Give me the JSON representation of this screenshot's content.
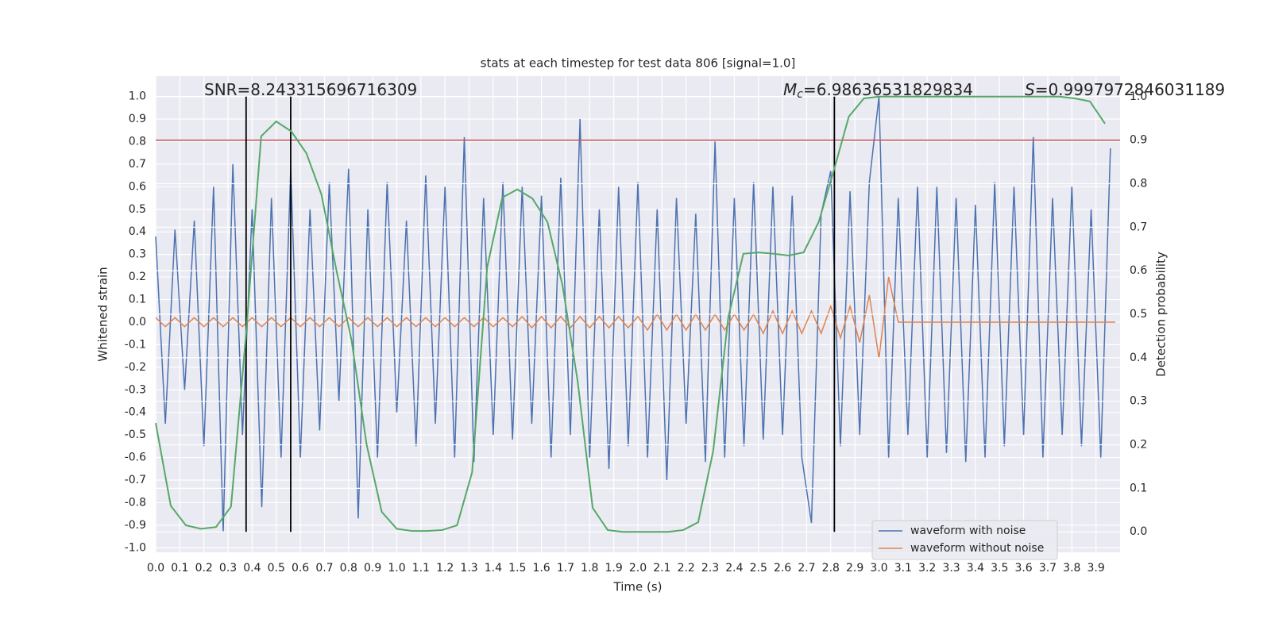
{
  "chart_data": {
    "type": "line",
    "title": "stats at each timestep for test data 806 [signal=1.0]",
    "xlabel": "Time (s)",
    "ylabel": "Whitened strain",
    "y2label": "Detection probability",
    "xlim": [
      0,
      4
    ],
    "ylim": [
      -1.02,
      1.09
    ],
    "y2lim": [
      -0.047,
      1.047
    ],
    "xticks": [
      {
        "value": 0,
        "label": "0.0"
      },
      0.1,
      0.2,
      0.3,
      0.4,
      0.5,
      0.6,
      0.7,
      0.8,
      0.9,
      {
        "value": 1,
        "label": "1.0"
      },
      1.1,
      1.2,
      1.3,
      1.4,
      1.5,
      1.6,
      1.7,
      1.8,
      1.9,
      {
        "value": 2,
        "label": "2.0"
      },
      2.1,
      2.2,
      2.3,
      2.4,
      2.5,
      2.6,
      2.7,
      2.8,
      2.9,
      {
        "value": 3,
        "label": "3.0"
      },
      3.1,
      3.2,
      3.3,
      3.4,
      3.5,
      3.6,
      3.7,
      3.8,
      3.9
    ],
    "yticks": [
      {
        "value": -1,
        "label": "-1.0"
      },
      -0.9,
      -0.8,
      -0.7,
      -0.6,
      -0.5,
      -0.4,
      -0.3,
      -0.2,
      -0.1,
      {
        "value": 0,
        "label": "0.0"
      },
      0.1,
      0.2,
      0.3,
      0.4,
      0.5,
      0.6,
      0.7,
      0.8,
      0.9,
      {
        "value": 1,
        "label": "1.0"
      }
    ],
    "y2ticks": [
      {
        "value": 0,
        "label": "0.0"
      },
      0.1,
      0.2,
      0.3,
      0.4,
      0.5,
      0.6,
      0.7,
      0.8,
      0.9,
      {
        "value": 1,
        "label": "1.0"
      }
    ],
    "grid": true,
    "legend": "lower right",
    "annotations": [
      {
        "text": "SNR=8.243315696716309"
      },
      {
        "symbol": "M",
        "subscript": "c",
        "text": "=6.98636531829834"
      },
      {
        "symbol": "S",
        "text": "=0.9997972846031189"
      }
    ],
    "vlines": {
      "color": "#000000",
      "x": [
        0.375,
        0.56,
        2.815
      ]
    },
    "hline": {
      "color": "#c44e52",
      "axis": "y2",
      "value": 0.9
    },
    "series": [
      {
        "name": "waveform with noise",
        "color": "#4c72b0",
        "x": [
          0,
          0.04,
          0.08,
          0.12,
          0.16,
          0.2,
          0.24,
          0.28,
          0.32,
          0.36,
          0.4,
          0.44,
          0.48,
          0.52,
          0.56,
          0.6,
          0.64,
          0.68,
          0.72,
          0.76,
          0.8,
          0.84,
          0.88,
          0.92,
          0.96,
          1,
          1.04,
          1.08,
          1.12,
          1.16,
          1.2,
          1.24,
          1.28,
          1.32,
          1.36,
          1.4,
          1.44,
          1.48,
          1.52,
          1.56,
          1.6,
          1.64,
          1.68,
          1.72,
          1.76,
          1.8,
          1.84,
          1.88,
          1.92,
          1.96,
          2,
          2.04,
          2.08,
          2.12,
          2.16,
          2.2,
          2.24,
          2.28,
          2.32,
          2.36,
          2.4,
          2.44,
          2.48,
          2.52,
          2.56,
          2.6,
          2.64,
          2.68,
          2.72,
          2.76,
          2.8,
          2.84,
          2.88,
          2.92,
          2.96,
          3,
          3.04,
          3.08,
          3.12,
          3.16,
          3.2,
          3.24,
          3.28,
          3.32,
          3.36,
          3.4,
          3.44,
          3.48,
          3.52,
          3.56,
          3.6,
          3.64,
          3.68,
          3.72,
          3.76,
          3.8,
          3.84,
          3.88,
          3.92,
          3.96
        ],
        "values": [
          0.38,
          -0.45,
          0.41,
          -0.3,
          0.45,
          -0.55,
          0.6,
          -0.93,
          0.7,
          -0.5,
          0.5,
          -0.82,
          0.55,
          -0.6,
          0.68,
          -0.6,
          0.5,
          -0.48,
          0.62,
          -0.35,
          0.68,
          -0.87,
          0.5,
          -0.6,
          0.62,
          -0.4,
          0.45,
          -0.55,
          0.65,
          -0.45,
          0.6,
          -0.6,
          0.82,
          -0.62,
          0.55,
          -0.5,
          0.62,
          -0.52,
          0.6,
          -0.45,
          0.56,
          -0.6,
          0.64,
          -0.5,
          0.9,
          -0.6,
          0.5,
          -0.65,
          0.6,
          -0.55,
          0.62,
          -0.6,
          0.5,
          -0.7,
          0.55,
          -0.45,
          0.48,
          -0.62,
          0.8,
          -0.6,
          0.55,
          -0.55,
          0.62,
          -0.52,
          0.6,
          -0.5,
          0.56,
          -0.6,
          -0.89,
          0.48,
          0.67,
          -0.55,
          0.58,
          -0.5,
          0.62,
          1.0,
          -0.6,
          0.55,
          -0.5,
          0.6,
          -0.6,
          0.6,
          -0.58,
          0.55,
          -0.62,
          0.52,
          -0.6,
          0.62,
          -0.55,
          0.6,
          -0.5,
          0.82,
          -0.6,
          0.55,
          -0.5,
          0.6,
          -0.55,
          0.5,
          -0.6,
          0.77
        ]
      },
      {
        "name": "waveform without noise",
        "color": "#dd8452",
        "x": [
          0,
          0.04,
          0.08,
          0.12,
          0.16,
          0.2,
          0.24,
          0.28,
          0.32,
          0.36,
          0.4,
          0.44,
          0.48,
          0.52,
          0.56,
          0.6,
          0.64,
          0.68,
          0.72,
          0.76,
          0.8,
          0.84,
          0.88,
          0.92,
          0.96,
          1,
          1.04,
          1.08,
          1.12,
          1.16,
          1.2,
          1.24,
          1.28,
          1.32,
          1.36,
          1.4,
          1.44,
          1.48,
          1.52,
          1.56,
          1.6,
          1.64,
          1.68,
          1.72,
          1.76,
          1.8,
          1.84,
          1.88,
          1.92,
          1.96,
          2,
          2.04,
          2.08,
          2.12,
          2.16,
          2.2,
          2.24,
          2.28,
          2.32,
          2.36,
          2.4,
          2.44,
          2.48,
          2.52,
          2.56,
          2.6,
          2.64,
          2.68,
          2.72,
          2.76,
          2.8,
          2.84,
          2.88,
          2.92,
          2.96,
          3,
          3.04,
          3.08,
          3.98
        ],
        "values": [
          0.02,
          -0.02,
          0.02,
          -0.02,
          0.02,
          -0.02,
          0.02,
          -0.02,
          0.02,
          -0.02,
          0.02,
          -0.02,
          0.02,
          -0.02,
          0.02,
          -0.02,
          0.02,
          -0.02,
          0.02,
          -0.02,
          0.02,
          -0.02,
          0.02,
          -0.02,
          0.02,
          -0.02,
          0.02,
          -0.02,
          0.02,
          -0.02,
          0.02,
          -0.02,
          0.02,
          -0.02,
          0.02,
          -0.02,
          0.02,
          -0.02,
          0.025,
          -0.025,
          0.025,
          -0.025,
          0.025,
          -0.025,
          0.025,
          -0.025,
          0.025,
          -0.025,
          0.025,
          -0.025,
          0.025,
          -0.035,
          0.035,
          -0.035,
          0.035,
          -0.035,
          0.035,
          -0.035,
          0.035,
          -0.035,
          0.035,
          -0.035,
          0.035,
          -0.05,
          0.05,
          -0.05,
          0.05,
          -0.05,
          0.05,
          -0.05,
          0.07,
          -0.07,
          0.07,
          -0.09,
          0.12,
          -0.16,
          0.2,
          0,
          0
        ]
      },
      {
        "color": "#55a868",
        "axis": "y2",
        "x": [
          0,
          0.0625,
          0.125,
          0.1875,
          0.25,
          0.3125,
          0.375,
          0.4375,
          0.5,
          0.5625,
          0.625,
          0.6875,
          0.75,
          0.8125,
          0.875,
          0.9375,
          1,
          1.0625,
          1.125,
          1.1875,
          1.25,
          1.3125,
          1.375,
          1.4375,
          1.5,
          1.5625,
          1.625,
          1.6875,
          1.75,
          1.8125,
          1.875,
          1.9375,
          2,
          2.0625,
          2.125,
          2.1875,
          2.25,
          2.3125,
          2.375,
          2.4375,
          2.5,
          2.5625,
          2.625,
          2.6875,
          2.75,
          2.8125,
          2.875,
          2.9375,
          3,
          3.0625,
          3.125,
          3.1875,
          3.25,
          3.3125,
          3.375,
          3.4375,
          3.5,
          3.5625,
          3.625,
          3.6875,
          3.75,
          3.8125,
          3.875,
          3.9375
        ],
        "values": [
          0.25,
          0.06,
          0.015,
          0.007,
          0.011,
          0.058,
          0.456,
          0.909,
          0.943,
          0.92,
          0.87,
          0.775,
          0.6,
          0.44,
          0.2,
          0.046,
          0.007,
          0.002,
          0.002,
          0.004,
          0.015,
          0.137,
          0.608,
          0.768,
          0.787,
          0.766,
          0.712,
          0.566,
          0.347,
          0.055,
          0.004,
          0,
          0,
          0,
          0,
          0.004,
          0.022,
          0.186,
          0.493,
          0.639,
          0.642,
          0.639,
          0.635,
          0.642,
          0.712,
          0.83,
          0.954,
          0.996,
          1,
          1,
          1,
          1,
          1,
          1,
          1,
          1,
          1,
          1,
          1,
          1,
          1,
          0.996,
          0.989,
          0.938
        ]
      }
    ]
  }
}
